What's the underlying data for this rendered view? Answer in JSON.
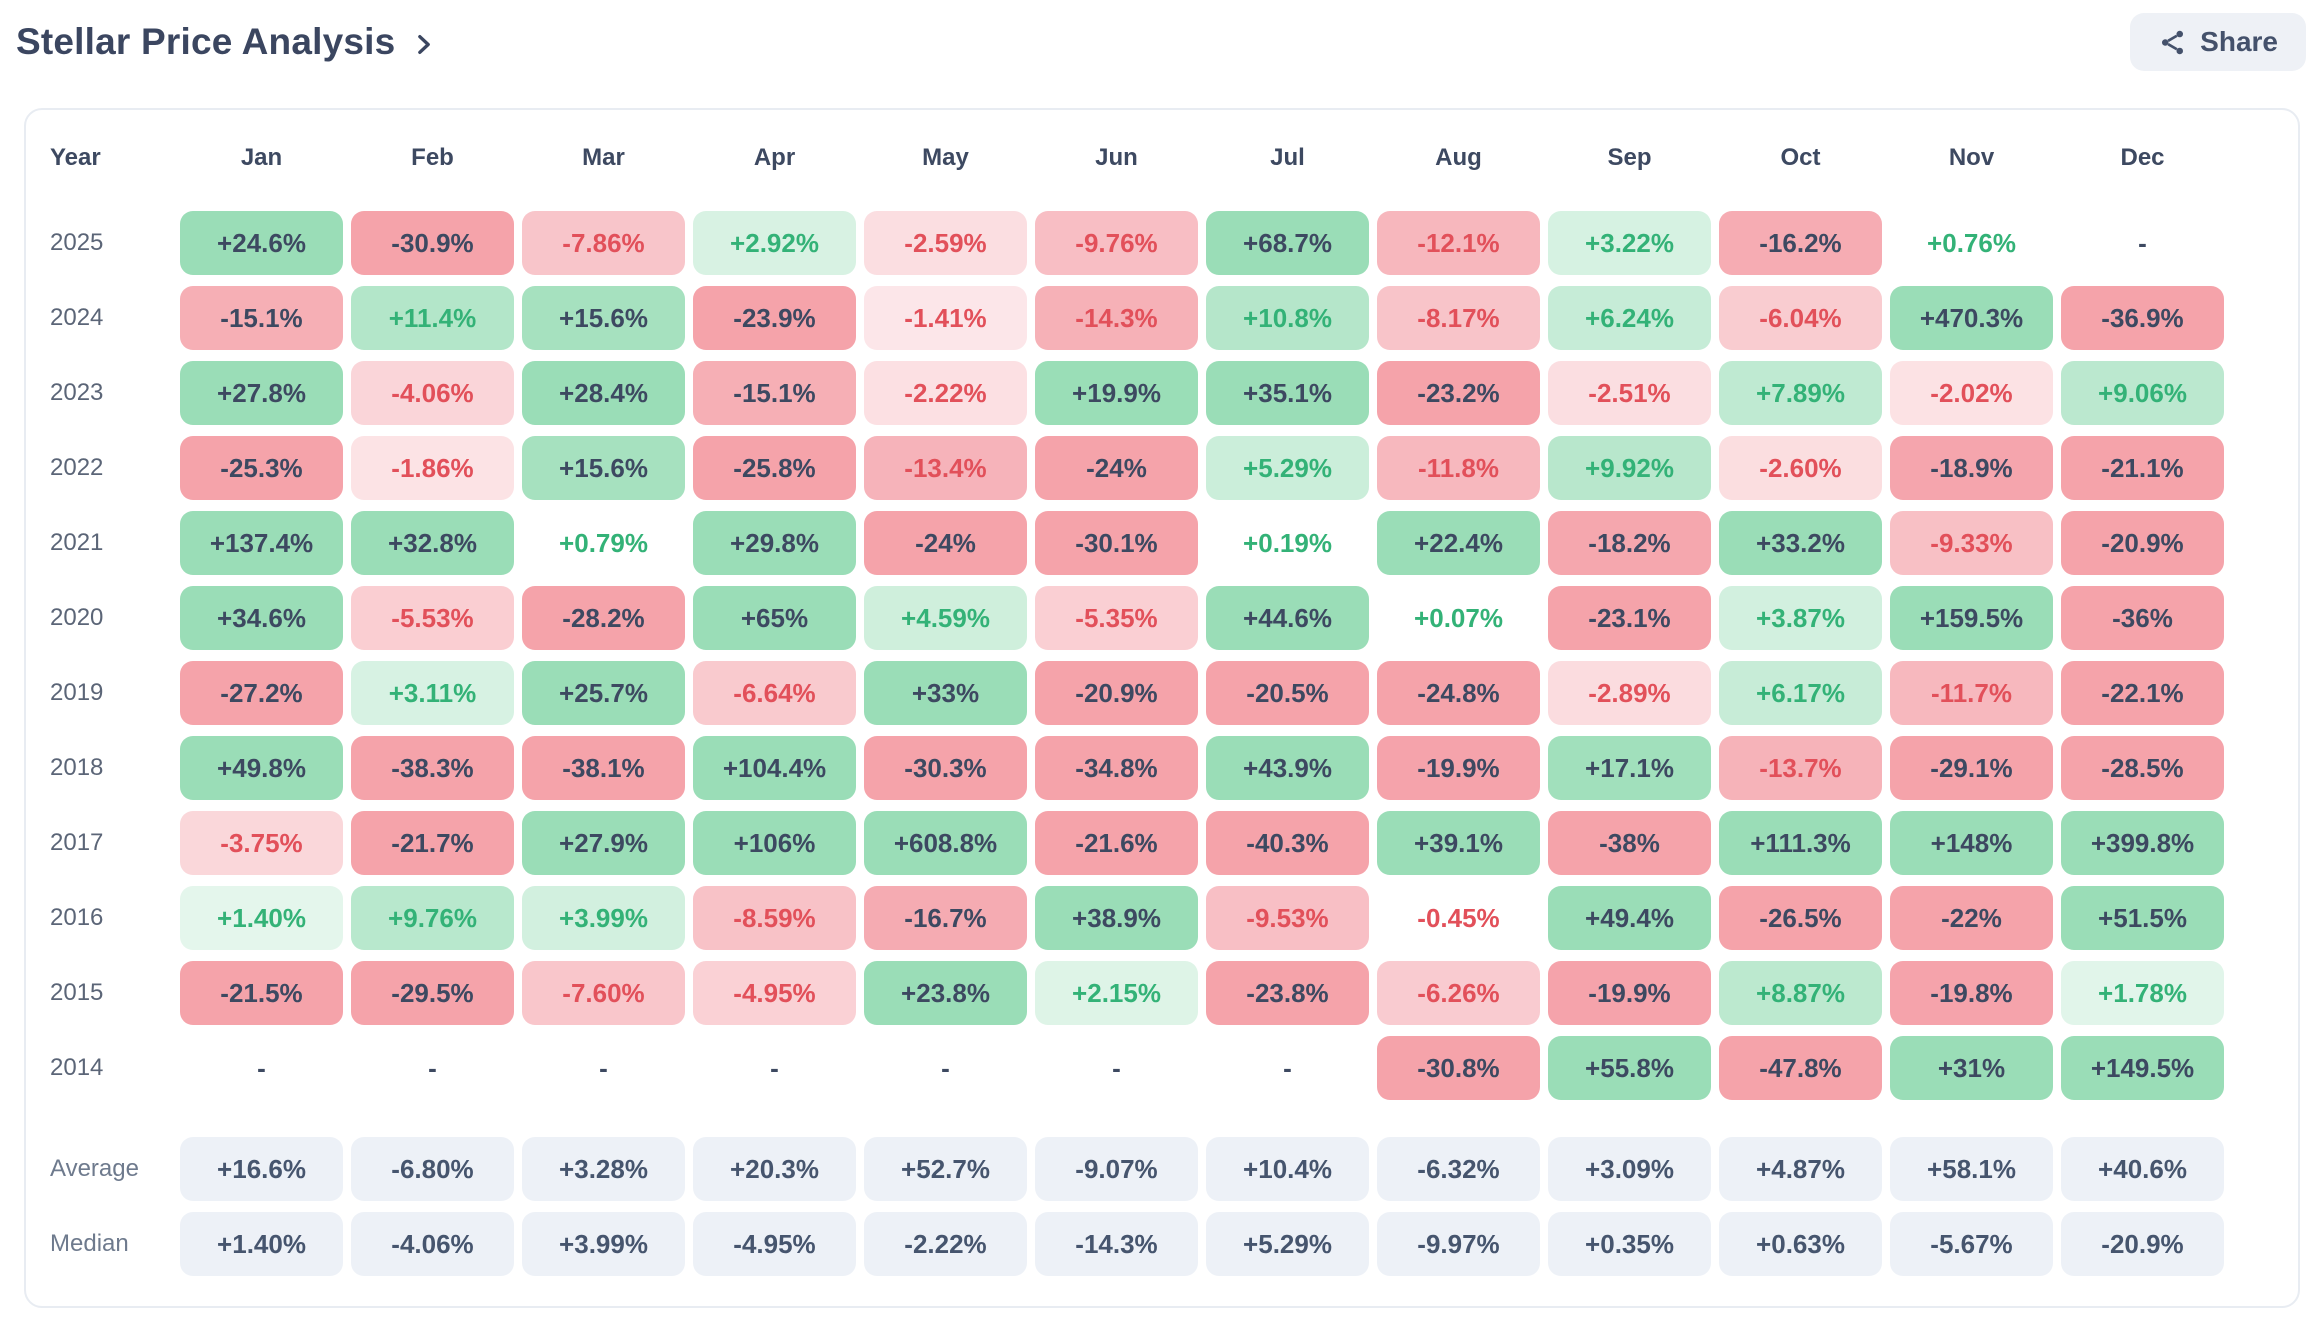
{
  "page": {
    "title": "Stellar Price Analysis",
    "share_label": "Share"
  },
  "icons": {
    "title_chevron": "chevron-right-icon",
    "share": "share-icon"
  },
  "table": {
    "columns": [
      "Year",
      "Jan",
      "Feb",
      "Mar",
      "Apr",
      "May",
      "Jun",
      "Jul",
      "Aug",
      "Sep",
      "Oct",
      "Nov",
      "Dec"
    ],
    "rows": [
      {
        "year": "2025",
        "values": [
          "+24.6%",
          "-30.9%",
          "-7.86%",
          "+2.92%",
          "-2.59%",
          "-9.76%",
          "+68.7%",
          "-12.1%",
          "+3.22%",
          "-16.2%",
          "+0.76%",
          "-"
        ]
      },
      {
        "year": "2024",
        "values": [
          "-15.1%",
          "+11.4%",
          "+15.6%",
          "-23.9%",
          "-1.41%",
          "-14.3%",
          "+10.8%",
          "-8.17%",
          "+6.24%",
          "-6.04%",
          "+470.3%",
          "-36.9%"
        ]
      },
      {
        "year": "2023",
        "values": [
          "+27.8%",
          "-4.06%",
          "+28.4%",
          "-15.1%",
          "-2.22%",
          "+19.9%",
          "+35.1%",
          "-23.2%",
          "-2.51%",
          "+7.89%",
          "-2.02%",
          "+9.06%"
        ]
      },
      {
        "year": "2022",
        "values": [
          "-25.3%",
          "-1.86%",
          "+15.6%",
          "-25.8%",
          "-13.4%",
          "-24%",
          "+5.29%",
          "-11.8%",
          "+9.92%",
          "-2.60%",
          "-18.9%",
          "-21.1%"
        ]
      },
      {
        "year": "2021",
        "values": [
          "+137.4%",
          "+32.8%",
          "+0.79%",
          "+29.8%",
          "-24%",
          "-30.1%",
          "+0.19%",
          "+22.4%",
          "-18.2%",
          "+33.2%",
          "-9.33%",
          "-20.9%"
        ]
      },
      {
        "year": "2020",
        "values": [
          "+34.6%",
          "-5.53%",
          "-28.2%",
          "+65%",
          "+4.59%",
          "-5.35%",
          "+44.6%",
          "+0.07%",
          "-23.1%",
          "+3.87%",
          "+159.5%",
          "-36%"
        ]
      },
      {
        "year": "2019",
        "values": [
          "-27.2%",
          "+3.11%",
          "+25.7%",
          "-6.64%",
          "+33%",
          "-20.9%",
          "-20.5%",
          "-24.8%",
          "-2.89%",
          "+6.17%",
          "-11.7%",
          "-22.1%"
        ]
      },
      {
        "year": "2018",
        "values": [
          "+49.8%",
          "-38.3%",
          "-38.1%",
          "+104.4%",
          "-30.3%",
          "-34.8%",
          "+43.9%",
          "-19.9%",
          "+17.1%",
          "-13.7%",
          "-29.1%",
          "-28.5%"
        ]
      },
      {
        "year": "2017",
        "values": [
          "-3.75%",
          "-21.7%",
          "+27.9%",
          "+106%",
          "+608.8%",
          "-21.6%",
          "-40.3%",
          "+39.1%",
          "-38%",
          "+111.3%",
          "+148%",
          "+399.8%"
        ]
      },
      {
        "year": "2016",
        "values": [
          "+1.40%",
          "+9.76%",
          "+3.99%",
          "-8.59%",
          "-16.7%",
          "+38.9%",
          "-9.53%",
          "-0.45%",
          "+49.4%",
          "-26.5%",
          "-22%",
          "+51.5%"
        ]
      },
      {
        "year": "2015",
        "values": [
          "-21.5%",
          "-29.5%",
          "-7.60%",
          "-4.95%",
          "+23.8%",
          "+2.15%",
          "-23.8%",
          "-6.26%",
          "-19.9%",
          "+8.87%",
          "-19.8%",
          "+1.78%"
        ]
      },
      {
        "year": "2014",
        "values": [
          "-",
          "-",
          "-",
          "-",
          "-",
          "-",
          "-",
          "-30.8%",
          "+55.8%",
          "-47.8%",
          "+31%",
          "+149.5%"
        ]
      }
    ],
    "summary_rows": [
      {
        "label": "Average",
        "values": [
          "+16.6%",
          "-6.80%",
          "+3.28%",
          "+20.3%",
          "+52.7%",
          "-9.07%",
          "+10.4%",
          "-6.32%",
          "+3.09%",
          "+4.87%",
          "+58.1%",
          "+40.6%"
        ]
      },
      {
        "label": "Median",
        "values": [
          "+1.40%",
          "-4.06%",
          "+3.99%",
          "-4.95%",
          "-2.22%",
          "-14.3%",
          "+5.29%",
          "-9.97%",
          "+0.35%",
          "+0.63%",
          "-5.67%",
          "-20.9%"
        ]
      }
    ]
  },
  "colors": {
    "positive_base": "#47c27c",
    "negative_base": "#ec5765",
    "positive_text": "#33b277",
    "negative_text": "#e2505a",
    "dark_text": "#3d4961",
    "summary_bg": "#edf1f7",
    "summary_text": "#46556e"
  }
}
